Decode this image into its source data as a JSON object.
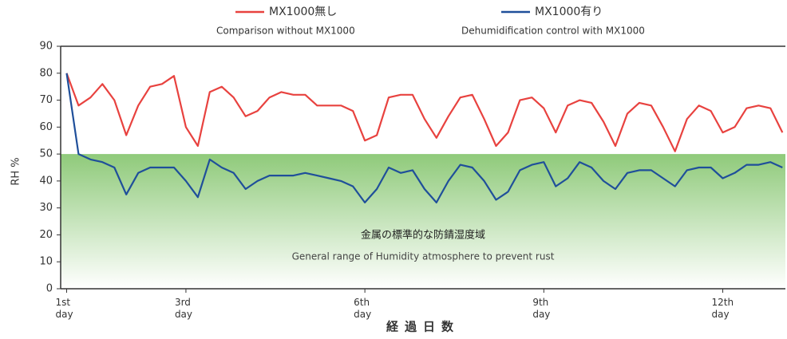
{
  "chart_data": {
    "type": "line",
    "ylabel": "RH %",
    "xlabel": "経過日数",
    "x": [
      1.0,
      1.2,
      1.4,
      1.6,
      1.8,
      2.0,
      2.2,
      2.4,
      2.6,
      2.8,
      3.0,
      3.2,
      3.4,
      3.6,
      3.8,
      4.0,
      4.2,
      4.4,
      4.6,
      4.8,
      5.0,
      5.2,
      5.4,
      5.6,
      5.8,
      6.0,
      6.2,
      6.4,
      6.6,
      6.8,
      7.0,
      7.2,
      7.4,
      7.6,
      7.8,
      8.0,
      8.2,
      8.4,
      8.6,
      8.8,
      9.0,
      9.2,
      9.4,
      9.6,
      9.8,
      10.0,
      10.2,
      10.4,
      10.6,
      10.8,
      11.0,
      11.2,
      11.4,
      11.6,
      11.8,
      12.0,
      12.2,
      12.4,
      12.6,
      12.8,
      13.0
    ],
    "series": [
      {
        "name": "MX1000無し",
        "subtitle": "Comparison without MX1000",
        "color": "#e8423f",
        "values": [
          80,
          68,
          71,
          76,
          70,
          57,
          68,
          75,
          76,
          79,
          60,
          53,
          73,
          75,
          71,
          64,
          66,
          71,
          73,
          72,
          72,
          68,
          68,
          68,
          66,
          55,
          57,
          71,
          72,
          72,
          63,
          56,
          64,
          71,
          72,
          63,
          53,
          58,
          70,
          71,
          67,
          58,
          68,
          70,
          69,
          62,
          53,
          65,
          69,
          68,
          60,
          51,
          63,
          68,
          66,
          58,
          60,
          67,
          68,
          67,
          58
        ]
      },
      {
        "name": "MX1000有り",
        "subtitle": "Dehumidification control with MX1000",
        "color": "#1f4f9a",
        "values": [
          80,
          50,
          48,
          47,
          45,
          35,
          43,
          45,
          45,
          45,
          40,
          34,
          48,
          45,
          43,
          37,
          40,
          42,
          42,
          42,
          43,
          42,
          41,
          40,
          38,
          32,
          37,
          45,
          43,
          44,
          37,
          32,
          40,
          46,
          45,
          40,
          33,
          36,
          44,
          46,
          47,
          38,
          41,
          47,
          45,
          40,
          37,
          43,
          44,
          44,
          41,
          38,
          44,
          45,
          45,
          41,
          43,
          46,
          46,
          47,
          45
        ]
      }
    ],
    "band": {
      "range": [
        0,
        50
      ],
      "color": "#8fca7a",
      "label": "金属の標準的な防錆湿度域",
      "sublabel": "General range of Humidity atmosphere to prevent rust"
    },
    "xlim": [
      0.9,
      13.05
    ],
    "ylim": [
      0,
      90
    ],
    "yticks": [
      0,
      10,
      20,
      30,
      40,
      50,
      60,
      70,
      80,
      90
    ],
    "xticks": [
      {
        "value": 1,
        "label": "1st day"
      },
      {
        "value": 3,
        "label": "3rd day"
      },
      {
        "value": 6,
        "label": "6th day"
      },
      {
        "value": 9,
        "label": "9th day"
      },
      {
        "value": 12,
        "label": "12th day"
      }
    ]
  }
}
